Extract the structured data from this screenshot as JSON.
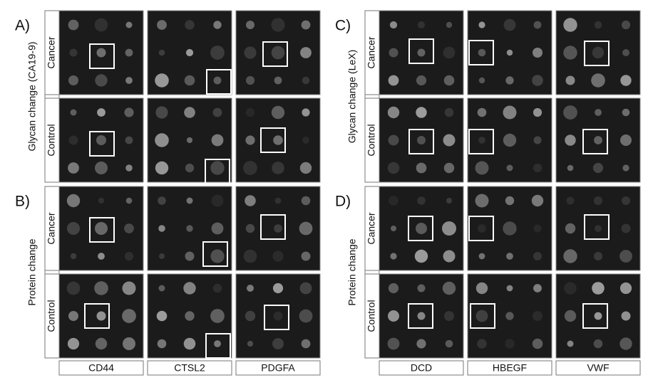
{
  "panels": [
    {
      "label": "A)",
      "side_label": "Glycan change (CA19-9)",
      "rows": [
        "Cancer",
        "Control"
      ]
    },
    {
      "label": "B)",
      "side_label": "Protein change",
      "rows": [
        "Cancer",
        "Control"
      ]
    },
    {
      "label": "C)",
      "side_label": "Glycan change (LeX)",
      "rows": [
        "Cancer",
        "Control"
      ]
    },
    {
      "label": "D)",
      "side_label": "Protein change",
      "rows": [
        "Cancer",
        "Control"
      ]
    }
  ],
  "columns_left": [
    "CD44",
    "CTSL2",
    "PDGFA"
  ],
  "columns_right": [
    "DCD",
    "HBEGF",
    "VWF"
  ]
}
